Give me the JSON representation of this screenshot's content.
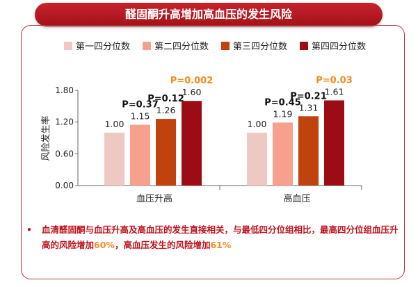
{
  "title": "醛固酮升高增加高血压的发生风险",
  "colors": {
    "q1": "#eec9c4",
    "q2": "#f8a08e",
    "q3": "#c0420c",
    "q4": "#9c0c14",
    "p_black": "#111111",
    "p_orange": "#f28c1e"
  },
  "chart_data": {
    "type": "bar",
    "categories": [
      "血压升高",
      "高血压"
    ],
    "ylabel": "风险发生率",
    "ylim": [
      0,
      1.8
    ],
    "yticks": [
      "0.00",
      "0.60",
      "1.20",
      "1.80"
    ],
    "series": [
      {
        "name": "第一四分位数",
        "values": [
          1.0,
          1.0
        ],
        "labels": [
          "1.00",
          "1.00"
        ]
      },
      {
        "name": "第二四分位数",
        "values": [
          1.15,
          1.19
        ],
        "labels": [
          "1.15",
          "1.19"
        ]
      },
      {
        "name": "第三四分位数",
        "values": [
          1.26,
          1.31
        ],
        "labels": [
          "1.26",
          "1.31"
        ]
      },
      {
        "name": "第四四分位数",
        "values": [
          1.6,
          1.61
        ],
        "labels": [
          "1.60",
          "1.61"
        ]
      }
    ],
    "p_values": [
      [
        "P=0.37",
        "P=0.12",
        "P=0.002"
      ],
      [
        "P=0.45",
        "P=0.21",
        "P=0.03"
      ]
    ]
  },
  "note": {
    "part1": "血清醛固酮与血压升高及高血压的发生直接相关，与最低四分位组相比，最高四分位组血压升高的风险增加",
    "pct1": "60%",
    "part2": "，高血压发生的风险增加",
    "pct2": "61%"
  }
}
